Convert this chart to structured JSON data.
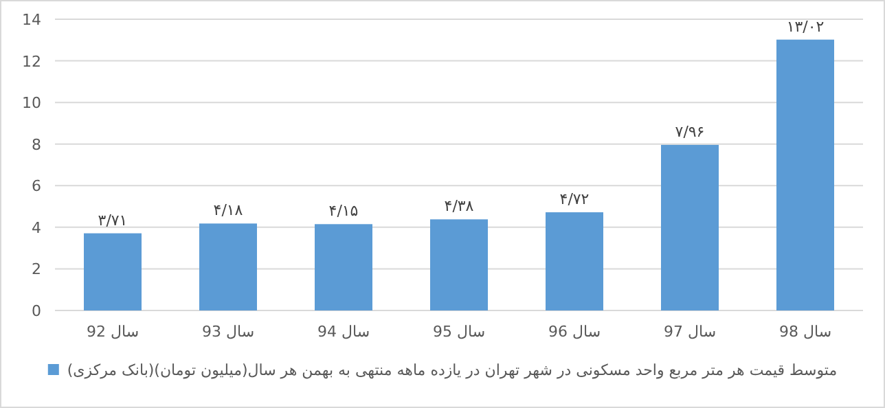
{
  "chart_data": {
    "type": "bar",
    "categories": [
      "92 سال",
      "93 سال",
      "94 سال",
      "95 سال",
      "96 سال",
      "97 سال",
      "98 سال"
    ],
    "series": [
      {
        "name": "متوسط قیمت هر متر مربع واحد مسکونی در شهر تهران در یازده ماهه منتهی به بهمن هر سال(میلیون تومان)(بانک مرکزی)",
        "color": "#5b9bd5",
        "values": [
          3.71,
          4.18,
          4.15,
          4.38,
          4.72,
          7.96,
          13.02
        ],
        "value_labels": [
          "۳/۷۱",
          "۴/۱۸",
          "۴/۱۵",
          "۴/۳۸",
          "۴/۷۲",
          "۷/۹۶",
          "۱۳/۰۲"
        ]
      }
    ],
    "ylim": [
      0,
      14
    ],
    "yticks": [
      0,
      2,
      4,
      6,
      8,
      10,
      12,
      14
    ],
    "grid": "y",
    "legend": "bottom"
  }
}
